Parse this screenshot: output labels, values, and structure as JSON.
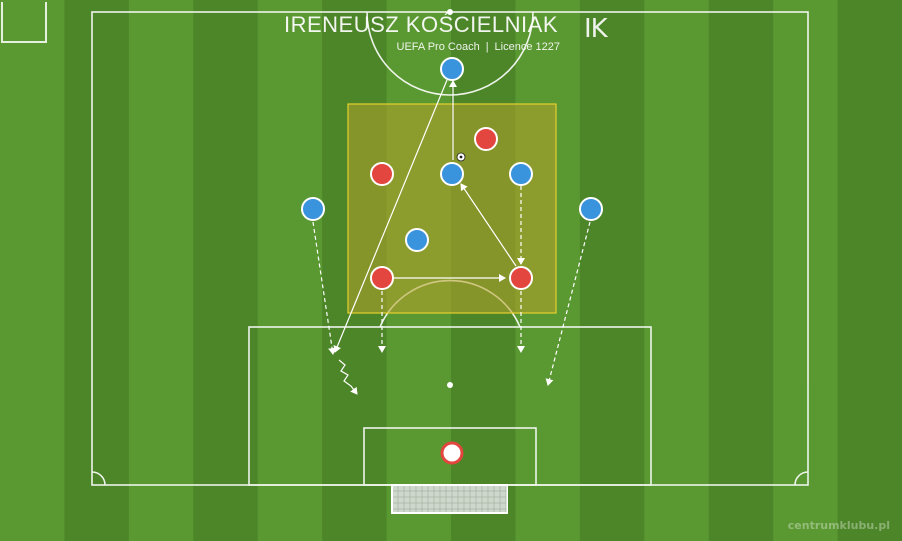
{
  "header": {
    "coach_name": "IRENEUSZ KOŚCIELNIAK",
    "credential": "UEFA Pro Coach",
    "separator": "|",
    "licence": "Licence 1227",
    "logo_text": "IK"
  },
  "watermark": "centrumklubu.pl",
  "colors": {
    "pitch_light": "#5a9832",
    "pitch_dark": "#4c8628",
    "line": "#ffffff",
    "zone_fill": "#b6a32a",
    "zone_border": "#e7cf2e",
    "team_blue": "#3a93dd",
    "team_red": "#e2463e",
    "goalkeeper": "#ffffff"
  },
  "diagram": {
    "players_blue": [
      "attacker",
      "attacker",
      "attacker",
      "attacker",
      "attacker",
      "attacker"
    ],
    "players_red": [
      "defender",
      "defender",
      "defender",
      "defender"
    ],
    "goalkeeper": "goalkeeper-white-red",
    "ball": "ball-icon",
    "arrow_styles": [
      "pass-solid",
      "run-dashed",
      "dribble-wavy"
    ]
  }
}
